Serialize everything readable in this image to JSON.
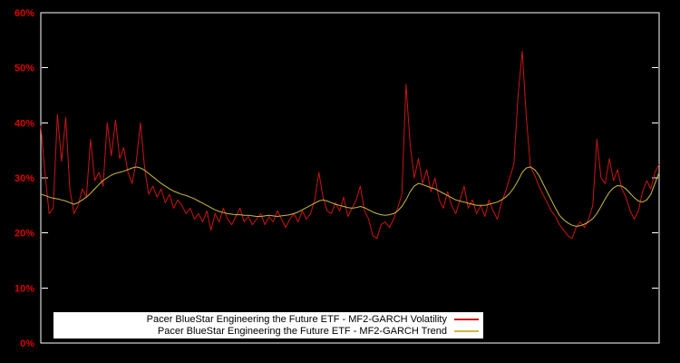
{
  "chart_data": {
    "type": "line",
    "title": "",
    "xlabel": "",
    "ylabel": "",
    "ylim": [
      0,
      60
    ],
    "yticks": [
      "0%",
      "10%",
      "20%",
      "30%",
      "40%",
      "50%",
      "60%"
    ],
    "grid": false,
    "legend_position": "bottom-center-inside",
    "colors": {
      "background": "#000000",
      "frame": "#ffffff",
      "tick_label": "#dd0000",
      "legend_background": "#ffffff",
      "legend_text": "#000000"
    },
    "series": [
      {
        "name": "Pacer BlueStar Engineering the Future ETF - MF2-GARCH Volatility",
        "color": "#cc1414",
        "values": [
          39.5,
          31,
          23.5,
          24.5,
          41.5,
          33,
          41,
          28,
          23.5,
          25,
          28,
          26.5,
          37,
          29.5,
          31,
          28.5,
          40,
          34,
          40.5,
          33.5,
          35.5,
          31,
          29,
          33,
          40,
          32,
          27,
          28.5,
          26.5,
          28,
          25.5,
          27,
          24.5,
          26,
          25,
          23.5,
          24.5,
          22.5,
          23.5,
          22,
          24,
          20.5,
          23.5,
          22,
          24.5,
          22.5,
          21.5,
          23,
          24.5,
          22,
          23,
          21.5,
          22.5,
          23.5,
          21.5,
          23,
          22,
          24,
          22.5,
          21,
          22.5,
          23.5,
          22,
          24,
          22.5,
          23.5,
          26,
          31,
          26.5,
          24,
          23.5,
          25.5,
          24,
          26.5,
          23,
          24.5,
          26,
          28.5,
          24,
          22.5,
          19.5,
          19,
          21.5,
          22,
          21,
          22.5,
          24.5,
          27,
          47,
          36,
          30,
          33.5,
          29,
          31.5,
          27.5,
          30,
          26,
          24.5,
          27.5,
          25,
          23.5,
          26,
          28.5,
          24.5,
          26,
          23.5,
          25,
          23,
          26,
          24,
          22.5,
          25.5,
          27.5,
          30,
          32.5,
          45,
          53,
          41,
          32,
          30.5,
          28.5,
          27,
          25.5,
          24,
          23,
          21.5,
          20.5,
          19.5,
          19,
          21,
          22,
          21,
          22.5,
          25,
          37,
          30,
          29,
          33.5,
          29.5,
          31.5,
          28,
          26.5,
          24,
          22.5,
          24,
          27.5,
          29.5,
          28,
          31,
          32.5
        ]
      },
      {
        "name": "Pacer BlueStar Engineering the Future ETF - MF2-GARCH Trend",
        "color": "#c9ba3f",
        "values": [
          27,
          26.8,
          26.5,
          26.3,
          26.2,
          26,
          25.8,
          25.5,
          25.2,
          25.5,
          26,
          26.5,
          27.2,
          28,
          28.8,
          29.5,
          30,
          30.5,
          30.8,
          31,
          31.2,
          31.5,
          31.8,
          32,
          31.8,
          31.4,
          30.8,
          30.2,
          29.6,
          29,
          28.5,
          28,
          27.6,
          27.3,
          27,
          26.8,
          26.5,
          26.2,
          25.8,
          25.4,
          25,
          24.6,
          24.2,
          23.9,
          23.7,
          23.5,
          23.4,
          23.3,
          23.3,
          23.2,
          23.2,
          23.1,
          23,
          23,
          23.1,
          23.2,
          23.1,
          23,
          23.1,
          23.2,
          23.3,
          23.5,
          23.8,
          24.2,
          24.6,
          25,
          25.4,
          25.8,
          26,
          25.8,
          25.5,
          25.2,
          25,
          24.8,
          24.6,
          24.5,
          24.6,
          24.8,
          24.6,
          24.2,
          23.8,
          23.5,
          23.3,
          23.2,
          23.3,
          23.5,
          24,
          24.8,
          26,
          27.5,
          28.5,
          29,
          28.8,
          28.5,
          28.2,
          28,
          27.6,
          27.2,
          26.8,
          26.4,
          26,
          25.8,
          25.6,
          25.4,
          25.2,
          25,
          25,
          25,
          25.2,
          25.4,
          25.6,
          26,
          26.5,
          27.2,
          28.2,
          29.5,
          31,
          31.8,
          32,
          31.5,
          30.5,
          29,
          27.5,
          26,
          24.5,
          23.2,
          22.4,
          21.8,
          21.4,
          21.2,
          21.3,
          21.6,
          22,
          22.6,
          23.5,
          24.8,
          26.2,
          27.4,
          28.2,
          28.6,
          28.5,
          28,
          27.2,
          26.4,
          25.8,
          25.6,
          26,
          27,
          29,
          31
        ]
      }
    ]
  }
}
